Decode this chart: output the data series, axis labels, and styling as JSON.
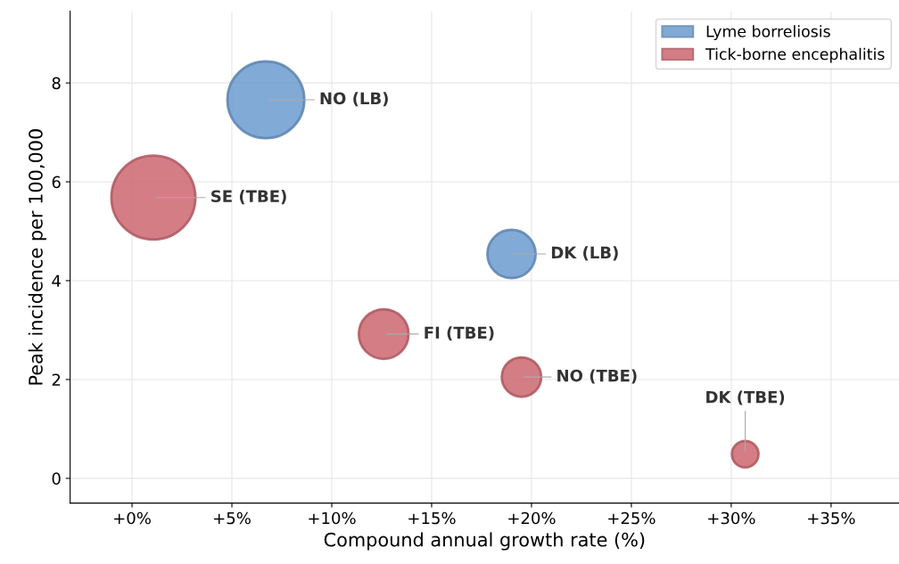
{
  "chart_data": {
    "type": "bubble",
    "xlabel": "Compound annual growth rate (%)",
    "ylabel": "Peak incidence per 100,000",
    "xlim": [
      -3.1,
      38.4
    ],
    "ylim": [
      -0.5,
      9.45
    ],
    "xticks": [
      {
        "value": 0,
        "label": "+0%"
      },
      {
        "value": 5,
        "label": "+5%"
      },
      {
        "value": 10,
        "label": "+10%"
      },
      {
        "value": 15,
        "label": "+15%"
      },
      {
        "value": 20,
        "label": "+20%"
      },
      {
        "value": 25,
        "label": "+25%"
      },
      {
        "value": 30,
        "label": "+30%"
      },
      {
        "value": 35,
        "label": "+35%"
      }
    ],
    "yticks": [
      0,
      2,
      4,
      6,
      8
    ],
    "grid": true,
    "legend": "top right",
    "series": [
      {
        "name": "Lyme borreliosis",
        "color": "#6c9bcf",
        "x": [
          6.7,
          19.0
        ],
        "values": [
          7.66,
          4.54
        ],
        "sizes": [
          0.84,
          0.33
        ]
      },
      {
        "name": "Tick-borne encephalitis",
        "color": "#cc6670",
        "x": [
          1.07,
          12.6,
          19.5,
          30.7
        ],
        "values": [
          5.68,
          2.92,
          2.05,
          0.49
        ],
        "sizes": [
          1,
          0.35,
          0.22,
          0.1
        ]
      }
    ],
    "annotations": [
      {
        "text": "NO (LB)",
        "x": 6.7,
        "y": 7.66
      },
      {
        "text": "DK (LB)",
        "x": 19.0,
        "y": 4.54
      },
      {
        "text": "SE (TBE)",
        "x": 1.07,
        "y": 5.68
      },
      {
        "text": "FI (TBE)",
        "x": 12.6,
        "y": 2.92
      },
      {
        "text": "NO (TBE)",
        "x": 19.5,
        "y": 2.05
      },
      {
        "text": "DK (TBE)",
        "x": 30.7,
        "y": 0.49
      }
    ]
  }
}
